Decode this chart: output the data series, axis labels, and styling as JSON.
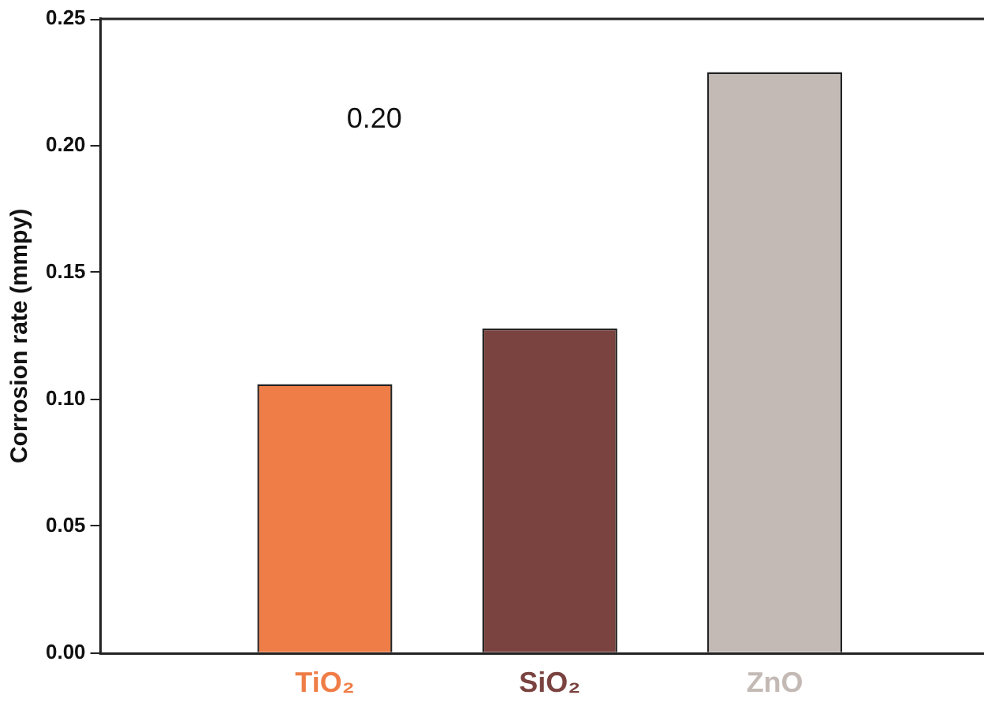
{
  "chart_data": {
    "type": "bar",
    "ylabel": "Corrosion rate (mmpy)",
    "categories": [
      "TiO₂",
      "SiO₂",
      "ZnO"
    ],
    "values": [
      0.106,
      0.128,
      0.229
    ],
    "colors": [
      "#ef7d47",
      "#7a4340",
      "#c4bab5"
    ],
    "ylim": [
      0,
      0.25
    ],
    "yticks": [
      {
        "value": 0,
        "label": "0.00"
      },
      0.05,
      {
        "value": 0.1,
        "label": "0.10"
      },
      0.15,
      {
        "value": 0.2,
        "label": "0.20"
      },
      0.25
    ],
    "annotations": [
      "0.20"
    ],
    "grid": false,
    "legend": false
  }
}
